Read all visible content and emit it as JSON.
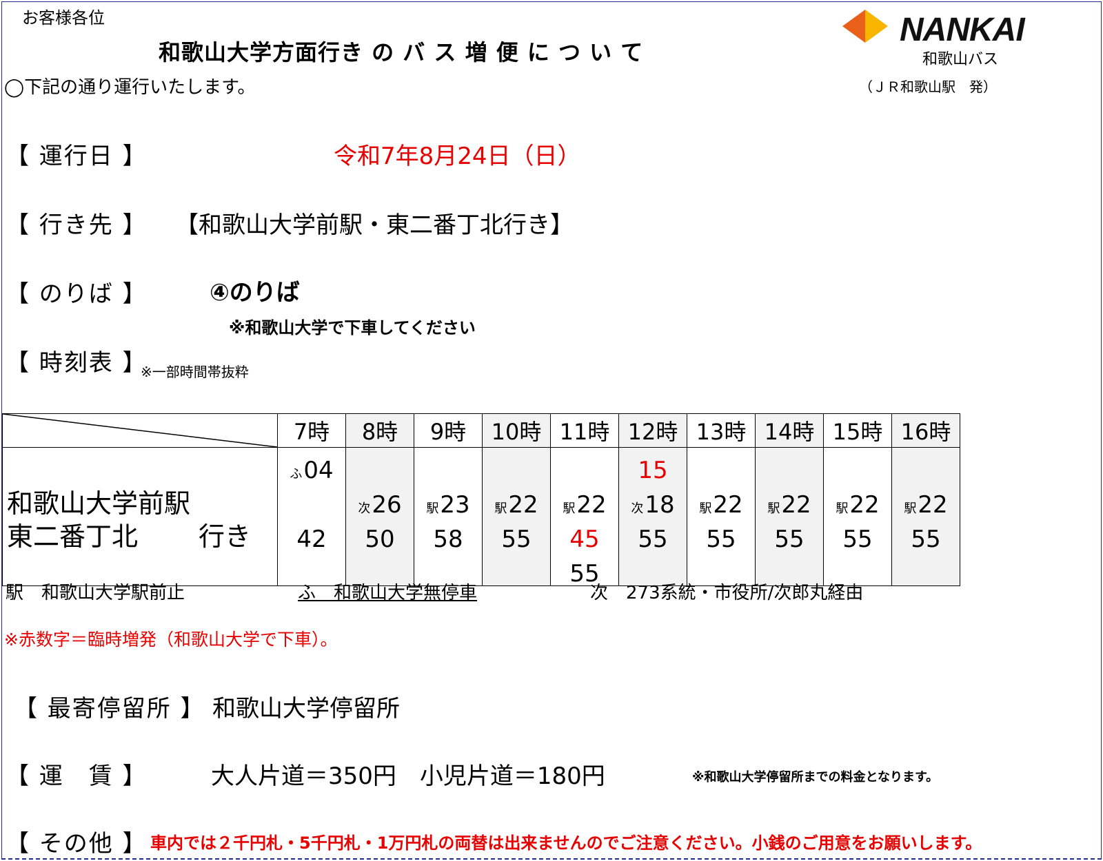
{
  "header": {
    "greeting": "お客様各位",
    "title": "和歌山大学方面行き の バ ス 増 便 に つ い て",
    "intro": "◯下記の通り運行いたします。",
    "logo_text": "NANKAI",
    "company": "和歌山バス",
    "origin": "（ＪＲ和歌山駅　発）"
  },
  "labels": {
    "date": "【 運行日 】",
    "destination": "【 行き先 】",
    "stop": "【 のりば 】",
    "timetable": "【 時刻表 】",
    "timetable_note": "※一部時間帯抜粋",
    "nearest": "【 最寄停留所 】",
    "fare": "【 運　賃 】",
    "other": "【 その他 】"
  },
  "values": {
    "date": "令和7年8月24日（日）",
    "destination": "【和歌山大学前駅・東二番丁北行き】",
    "stop": "④のりば",
    "stop_note": "※和歌山大学で下車してください",
    "nearest": "和歌山大学停留所",
    "fare": "大人片道＝350円　小児片道＝180円",
    "fare_note": "※和歌山大学停留所までの料金となります。",
    "other": "車内では２千円札・5千円札・1万円札の両替は出来ませんのでご注意ください。小銭のご用意をお願いします。"
  },
  "timetable": {
    "row_label_1": "和歌山大学前駅",
    "row_label_2": "東二番丁北",
    "row_label_3": "行き",
    "hours": [
      "7時",
      "8時",
      "9時",
      "10時",
      "11時",
      "12時",
      "13時",
      "14時",
      "15時",
      "16時"
    ],
    "columns": [
      {
        "v1": {
          "pre": "ふ",
          "t": "04",
          "red": false
        },
        "v3": {
          "pre": "",
          "t": "42",
          "red": false
        }
      },
      {
        "v2": {
          "pre": "次",
          "t": "26",
          "red": false
        },
        "v3": {
          "pre": "",
          "t": "50",
          "red": false
        }
      },
      {
        "v2": {
          "pre": "駅",
          "t": "23",
          "red": false
        },
        "v3": {
          "pre": "",
          "t": "58",
          "red": false
        }
      },
      {
        "v2": {
          "pre": "駅",
          "t": "22",
          "red": false
        },
        "v3": {
          "pre": "",
          "t": "55",
          "red": false
        }
      },
      {
        "v2": {
          "pre": "駅",
          "t": "22",
          "red": false
        },
        "v3": {
          "pre": "",
          "t": "45",
          "red": true
        },
        "v4": {
          "pre": "",
          "t": "55",
          "red": false
        }
      },
      {
        "v1": {
          "pre": "",
          "t": "15",
          "red": true
        },
        "v2": {
          "pre": "次",
          "t": "18",
          "red": false
        },
        "v3": {
          "pre": "",
          "t": "55",
          "red": false
        }
      },
      {
        "v2": {
          "pre": "駅",
          "t": "22",
          "red": false
        },
        "v3": {
          "pre": "",
          "t": "55",
          "red": false
        }
      },
      {
        "v2": {
          "pre": "駅",
          "t": "22",
          "red": false
        },
        "v3": {
          "pre": "",
          "t": "55",
          "red": false
        }
      },
      {
        "v2": {
          "pre": "駅",
          "t": "22",
          "red": false
        },
        "v3": {
          "pre": "",
          "t": "55",
          "red": false
        }
      },
      {
        "v2": {
          "pre": "駅",
          "t": "22",
          "red": false
        },
        "v3": {
          "pre": "",
          "t": "55",
          "red": false
        }
      }
    ],
    "shaded": [
      false,
      true,
      false,
      true,
      false,
      true,
      false,
      true,
      false,
      true
    ]
  },
  "legend": {
    "station": "駅　和歌山大学駅前止",
    "nonstop": "ふ　和歌山大学無停車",
    "route": "次　273系統・市役所/次郎丸経由",
    "red_note": "※赤数字＝臨時増発（和歌山大学で下車）。"
  },
  "colors": {
    "accent_red": "#e60000",
    "logo_orange": "#e8601a",
    "logo_yellow": "#f7b500",
    "frame_blue": "#1f2a8a"
  }
}
